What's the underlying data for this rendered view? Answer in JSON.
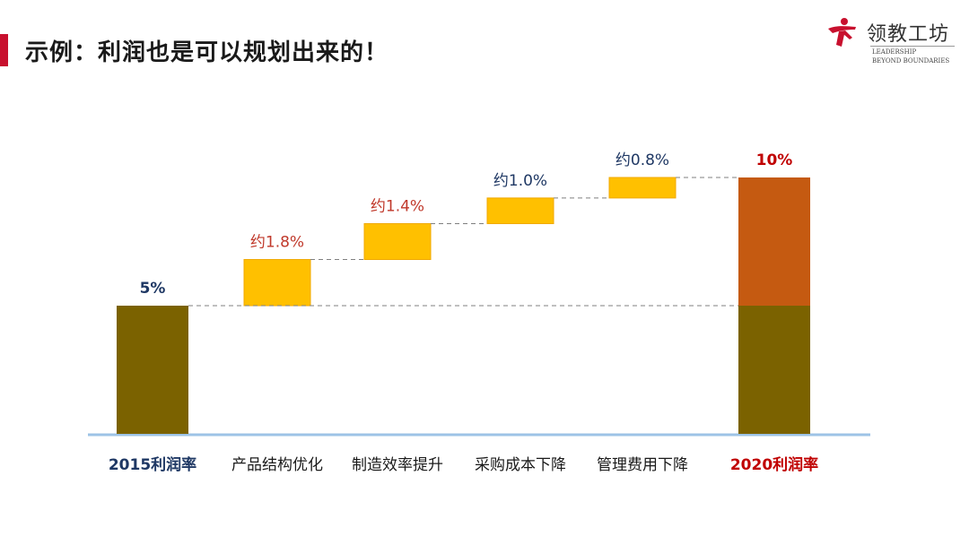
{
  "slide": {
    "title": "示例：利润也是可以规划出来的！"
  },
  "logo": {
    "name": "领教工坊",
    "tagline_line1": "LEADERSHIP",
    "tagline_line2": "BEYOND BOUNDARIES"
  },
  "colors": {
    "accent": "#c8102e",
    "base_bar": "#7b6200",
    "increment_bar": "#ffc000",
    "increment_border": "#f0a800",
    "total_top_bar": "#c55a11",
    "axis": "#9dc3e6",
    "connector": "#7f7f7f",
    "start_label": "#1f3864",
    "end_label": "#c00000",
    "increment_label_red": "#c0392b",
    "increment_label_blue": "#1f3864",
    "category_text": "#1a1a1a"
  },
  "chart_data": {
    "type": "waterfall",
    "categories": [
      "2015利润率",
      "产品结构优化",
      "制造效率提升",
      "采购成本下降",
      "管理费用下降",
      "2020利润率"
    ],
    "start": {
      "category": "2015利润率",
      "value": 5,
      "label": "5%"
    },
    "increments": [
      {
        "category": "产品结构优化",
        "value": 1.8,
        "label": "约1.8%"
      },
      {
        "category": "制造效率提升",
        "value": 1.4,
        "label": "约1.4%"
      },
      {
        "category": "采购成本下降",
        "value": 1.0,
        "label": "约1.0%"
      },
      {
        "category": "管理费用下降",
        "value": 0.8,
        "label": "约0.8%"
      }
    ],
    "end": {
      "category": "2020利润率",
      "value": 10,
      "base": 5,
      "label": "10%"
    },
    "ylim": [
      0,
      10
    ],
    "grid": false
  }
}
